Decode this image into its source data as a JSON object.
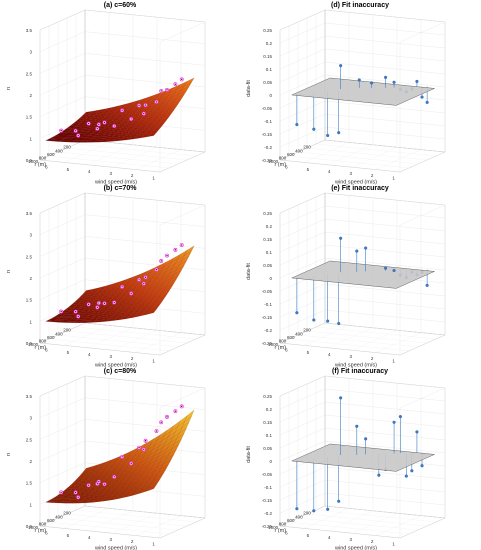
{
  "chart_data": [
    {
      "id": "a",
      "type": "surface3d",
      "title": "(a) c=60%",
      "zlabel": "n",
      "xlabel": "r (m)",
      "ylabel": "wind speed (m/s)",
      "zlim": [
        0.5,
        3.5
      ],
      "zticks": [
        "0.5",
        "1",
        "1.5",
        "2",
        "2.5",
        "3",
        "3.5"
      ],
      "rticks": [
        "1000",
        "800",
        "600",
        "400",
        "200"
      ],
      "wticks": [
        "6",
        "5",
        "4",
        "3",
        "2",
        "1"
      ],
      "colormap": [
        "#6e0000",
        "#b82a0a",
        "#e35c14",
        "#f2a01e"
      ],
      "data_points": [
        {
          "r": 950,
          "w": 5.6,
          "n": 1.15
        },
        {
          "r": 900,
          "w": 4.9,
          "n": 1.05
        },
        {
          "r": 800,
          "w": 4.2,
          "n": 1.2
        },
        {
          "r": 700,
          "w": 3.6,
          "n": 1.25
        },
        {
          "r": 600,
          "w": 3.0,
          "n": 1.4
        },
        {
          "r": 500,
          "w": 2.6,
          "n": 1.5
        },
        {
          "r": 400,
          "w": 2.2,
          "n": 1.75
        },
        {
          "r": 300,
          "w": 1.9,
          "n": 2.0
        },
        {
          "r": 200,
          "w": 1.7,
          "n": 2.1
        },
        {
          "r": 150,
          "w": 1.5,
          "n": 2.2
        },
        {
          "r": 700,
          "w": 5.4,
          "n": 1.05
        },
        {
          "r": 500,
          "w": 4.7,
          "n": 1.15
        },
        {
          "r": 350,
          "w": 3.9,
          "n": 1.45
        },
        {
          "r": 250,
          "w": 3.3,
          "n": 1.55
        },
        {
          "r": 180,
          "w": 2.4,
          "n": 1.9
        },
        {
          "r": 120,
          "w": 5.9,
          "n": 0.95
        },
        {
          "r": 100,
          "w": 5.2,
          "n": 1.0
        },
        {
          "r": 300,
          "w": 2.9,
          "n": 1.6
        }
      ]
    },
    {
      "id": "b",
      "type": "surface3d",
      "title": "(b) c=70%",
      "zlabel": "n",
      "xlabel": "r (m)",
      "ylabel": "wind speed (m/s)",
      "zlim": [
        0.5,
        3.5
      ],
      "zticks": [
        "0.5",
        "1",
        "1.5",
        "2",
        "2.5",
        "3",
        "3.5"
      ],
      "rticks": [
        "1000",
        "800",
        "600",
        "400",
        "200"
      ],
      "wticks": [
        "6",
        "5",
        "4",
        "3",
        "2",
        "1"
      ],
      "colormap": [
        "#7a0800",
        "#c83a0c",
        "#e8761a",
        "#f5b828"
      ],
      "data_points": [
        {
          "r": 950,
          "w": 5.6,
          "n": 1.2
        },
        {
          "r": 900,
          "w": 4.9,
          "n": 1.1
        },
        {
          "r": 800,
          "w": 4.2,
          "n": 1.3
        },
        {
          "r": 700,
          "w": 3.6,
          "n": 1.4
        },
        {
          "r": 600,
          "w": 3.0,
          "n": 1.6
        },
        {
          "r": 500,
          "w": 2.6,
          "n": 1.8
        },
        {
          "r": 400,
          "w": 2.2,
          "n": 2.1
        },
        {
          "r": 300,
          "w": 1.9,
          "n": 2.4
        },
        {
          "r": 200,
          "w": 1.7,
          "n": 2.5
        },
        {
          "r": 150,
          "w": 1.5,
          "n": 2.6
        },
        {
          "r": 700,
          "w": 5.4,
          "n": 1.1
        },
        {
          "r": 500,
          "w": 4.7,
          "n": 1.25
        },
        {
          "r": 350,
          "w": 3.9,
          "n": 1.6
        },
        {
          "r": 250,
          "w": 3.3,
          "n": 1.75
        },
        {
          "r": 180,
          "w": 2.4,
          "n": 2.2
        },
        {
          "r": 120,
          "w": 5.9,
          "n": 1.0
        },
        {
          "r": 100,
          "w": 5.2,
          "n": 1.05
        },
        {
          "r": 300,
          "w": 2.9,
          "n": 1.85
        }
      ]
    },
    {
      "id": "c",
      "type": "surface3d",
      "title": "(c) c=80%",
      "zlabel": "n",
      "xlabel": "r (m)",
      "ylabel": "wind speed (m/s)",
      "zlim": [
        0.5,
        3.5
      ],
      "zticks": [
        "0.5",
        "1",
        "1.5",
        "2",
        "2.5",
        "3",
        "3.5"
      ],
      "rticks": [
        "1000",
        "800",
        "600",
        "400",
        "200"
      ],
      "wticks": [
        "6",
        "5",
        "4",
        "3",
        "2",
        "1"
      ],
      "colormap": [
        "#8a1a00",
        "#d0520e",
        "#eca020",
        "#f7e040"
      ],
      "data_points": [
        {
          "r": 950,
          "w": 5.6,
          "n": 1.25
        },
        {
          "r": 900,
          "w": 4.9,
          "n": 1.15
        },
        {
          "r": 800,
          "w": 4.2,
          "n": 1.45
        },
        {
          "r": 700,
          "w": 3.6,
          "n": 1.6
        },
        {
          "r": 600,
          "w": 3.0,
          "n": 1.9
        },
        {
          "r": 500,
          "w": 2.6,
          "n": 2.2
        },
        {
          "r": 400,
          "w": 2.2,
          "n": 2.6
        },
        {
          "r": 300,
          "w": 1.9,
          "n": 2.9
        },
        {
          "r": 200,
          "w": 1.7,
          "n": 3.0
        },
        {
          "r": 150,
          "w": 1.5,
          "n": 3.1
        },
        {
          "r": 700,
          "w": 5.4,
          "n": 1.15
        },
        {
          "r": 500,
          "w": 4.7,
          "n": 1.35
        },
        {
          "r": 350,
          "w": 3.9,
          "n": 1.9
        },
        {
          "r": 250,
          "w": 3.3,
          "n": 2.1
        },
        {
          "r": 180,
          "w": 2.4,
          "n": 2.7
        },
        {
          "r": 120,
          "w": 5.9,
          "n": 1.05
        },
        {
          "r": 100,
          "w": 5.2,
          "n": 1.1
        },
        {
          "r": 300,
          "w": 2.9,
          "n": 2.3
        }
      ]
    },
    {
      "id": "d",
      "type": "stem3d",
      "title": "(d) Fit inaccuracy",
      "zlabel": "data-fit",
      "xlabel": "r (m)",
      "ylabel": "wind speed (m/s)",
      "zlim": [
        -0.25,
        0.25
      ],
      "zticks": [
        "-0.25",
        "-0.2",
        "-0.15",
        "-0.1",
        "-0.05",
        "0",
        "0.05",
        "0.1",
        "0.15",
        "0.2",
        "0.25"
      ],
      "rticks": [
        "1000",
        "800",
        "600",
        "400",
        "200"
      ],
      "wticks": [
        "6",
        "5",
        "4",
        "3",
        "2",
        "1"
      ],
      "color": "#3d7cc9",
      "residuals": [
        {
          "r": 950,
          "w": 5.8,
          "d": -0.12
        },
        {
          "r": 850,
          "w": 5.2,
          "d": -0.14
        },
        {
          "r": 720,
          "w": 4.8,
          "d": -0.17
        },
        {
          "r": 660,
          "w": 4.4,
          "d": -0.16
        },
        {
          "r": 560,
          "w": 4.5,
          "d": 0.09
        },
        {
          "r": 420,
          "w": 3.9,
          "d": 0.03
        },
        {
          "r": 380,
          "w": 3.4,
          "d": 0.02
        },
        {
          "r": 300,
          "w": 2.9,
          "d": 0.04
        },
        {
          "r": 250,
          "w": 2.6,
          "d": 0.02
        },
        {
          "r": 200,
          "w": 2.4,
          "d": -0.01
        },
        {
          "r": 160,
          "w": 2.2,
          "d": -0.02
        },
        {
          "r": 130,
          "w": 2.0,
          "d": -0.01
        },
        {
          "r": 110,
          "w": 1.8,
          "d": 0.02
        },
        {
          "r": 90,
          "w": 1.6,
          "d": -0.04
        },
        {
          "r": 70,
          "w": 1.4,
          "d": -0.06
        }
      ]
    },
    {
      "id": "e",
      "type": "stem3d",
      "title": "(e) Fit inaccuracy",
      "zlabel": "data-fit",
      "xlabel": "r (m)",
      "ylabel": "wind speed (m/s)",
      "zlim": [
        -0.25,
        0.25
      ],
      "zticks": [
        "-0.25",
        "-0.2",
        "-0.15",
        "-0.1",
        "-0.05",
        "0",
        "0.05",
        "0.1",
        "0.15",
        "0.2",
        "0.25"
      ],
      "rticks": [
        "1000",
        "800",
        "600",
        "400",
        "200"
      ],
      "wticks": [
        "6",
        "5",
        "4",
        "3",
        "2",
        "1"
      ],
      "color": "#3d7cc9",
      "residuals": [
        {
          "r": 950,
          "w": 5.8,
          "d": -0.14
        },
        {
          "r": 850,
          "w": 5.2,
          "d": -0.17
        },
        {
          "r": 720,
          "w": 4.8,
          "d": -0.18
        },
        {
          "r": 660,
          "w": 4.4,
          "d": -0.19
        },
        {
          "r": 560,
          "w": 4.5,
          "d": 0.13
        },
        {
          "r": 480,
          "w": 3.9,
          "d": 0.08
        },
        {
          "r": 420,
          "w": 3.6,
          "d": 0.09
        },
        {
          "r": 300,
          "w": 2.9,
          "d": 0.01
        },
        {
          "r": 250,
          "w": 2.6,
          "d": 0.0
        },
        {
          "r": 200,
          "w": 2.4,
          "d": -0.02
        },
        {
          "r": 160,
          "w": 2.2,
          "d": -0.03
        },
        {
          "r": 130,
          "w": 2.0,
          "d": -0.01
        },
        {
          "r": 110,
          "w": 1.8,
          "d": -0.02
        },
        {
          "r": 90,
          "w": 1.6,
          "d": -0.01
        },
        {
          "r": 70,
          "w": 1.4,
          "d": -0.06
        }
      ]
    },
    {
      "id": "f",
      "type": "stem3d",
      "title": "(f) Fit inaccuracy",
      "zlabel": "data-fit",
      "xlabel": "r (m)",
      "ylabel": "wind speed (m/s)",
      "zlim": [
        -0.25,
        0.25
      ],
      "zticks": [
        "-0.25",
        "-0.2",
        "-0.15",
        "-0.1",
        "-0.05",
        "0",
        "0.05",
        "0.1",
        "0.15",
        "0.2",
        "0.25"
      ],
      "rticks": [
        "1000",
        "800",
        "600",
        "400",
        "200"
      ],
      "wticks": [
        "6",
        "5",
        "4",
        "3",
        "2",
        "1"
      ],
      "color": "#3d7cc9",
      "residuals": [
        {
          "r": 950,
          "w": 5.8,
          "d": -0.19
        },
        {
          "r": 850,
          "w": 5.2,
          "d": -0.2
        },
        {
          "r": 720,
          "w": 4.8,
          "d": -0.2
        },
        {
          "r": 660,
          "w": 4.4,
          "d": -0.17
        },
        {
          "r": 560,
          "w": 4.5,
          "d": 0.22
        },
        {
          "r": 480,
          "w": 3.9,
          "d": 0.11
        },
        {
          "r": 420,
          "w": 3.6,
          "d": 0.06
        },
        {
          "r": 360,
          "w": 3.1,
          "d": -0.08
        },
        {
          "r": 300,
          "w": 2.9,
          "d": -0.06
        },
        {
          "r": 250,
          "w": 2.6,
          "d": 0.12
        },
        {
          "r": 200,
          "w": 2.4,
          "d": 0.14
        },
        {
          "r": 160,
          "w": 2.2,
          "d": -0.09
        },
        {
          "r": 130,
          "w": 2.0,
          "d": -0.07
        },
        {
          "r": 110,
          "w": 1.8,
          "d": 0.08
        },
        {
          "r": 90,
          "w": 1.6,
          "d": -0.05
        }
      ]
    }
  ]
}
